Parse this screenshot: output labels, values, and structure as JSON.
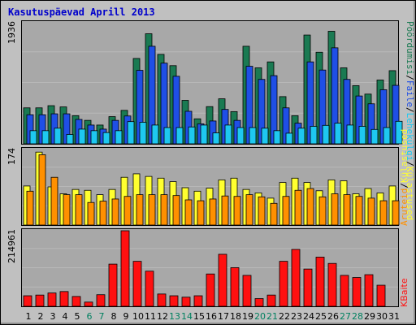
{
  "window": {
    "title": "Kasutuspäevad Aprill 2013"
  },
  "colors": {
    "background": "#c0c0c0",
    "panel": "#a8a8a8",
    "visits": "#1a7a52",
    "pages": "#1f4fe6",
    "files": "#1ec8f0",
    "hits": "#ffff30",
    "sites": "#ff9000",
    "kbytes": "#ff1010",
    "weekend_tick": "#008060",
    "title": "#0000cc"
  },
  "chart_data": [
    {
      "type": "bar",
      "panel": "top",
      "y_max_label": "1936",
      "ylim": [
        0,
        1936
      ],
      "categories": [
        "1",
        "2",
        "3",
        "4",
        "5",
        "6",
        "7",
        "8",
        "9",
        "10",
        "11",
        "12",
        "13",
        "14",
        "15",
        "16",
        "17",
        "18",
        "19",
        "20",
        "21",
        "22",
        "23",
        "24",
        "25",
        "26",
        "27",
        "28",
        "29",
        "30",
        "31"
      ],
      "weekend_days": [
        "6",
        "7",
        "13",
        "14",
        "20",
        "21",
        "27",
        "28"
      ],
      "legend": [
        "Külastused",
        "Lehekülgi",
        "Faile",
        "Pöördumisi"
      ],
      "legend_separator": "/",
      "series": [
        {
          "name": "Pöördumisi",
          "color_key": "visits",
          "values": [
            575,
            575,
            610,
            590,
            450,
            375,
            300,
            435,
            535,
            1365,
            1760,
            1430,
            1250,
            695,
            400,
            595,
            720,
            515,
            1560,
            1215,
            1310,
            755,
            450,
            1740,
            1465,
            1800,
            1215,
            930,
            795,
            1020,
            1170
          ]
        },
        {
          "name": "Faile",
          "color_key": "pages",
          "values": [
            465,
            465,
            480,
            480,
            390,
            300,
            235,
            375,
            445,
            1175,
            1560,
            1290,
            1080,
            520,
            320,
            365,
            550,
            375,
            1240,
            1030,
            1090,
            575,
            330,
            1310,
            1180,
            1535,
            1030,
            765,
            640,
            865,
            935
          ]
        },
        {
          "name": "Lehekülgi",
          "color_key": "files",
          "values": [
            210,
            210,
            250,
            150,
            235,
            210,
            180,
            210,
            355,
            345,
            300,
            260,
            260,
            270,
            300,
            175,
            300,
            260,
            260,
            250,
            210,
            170,
            250,
            280,
            295,
            330,
            300,
            280,
            230,
            260,
            360
          ]
        }
      ]
    },
    {
      "type": "bar",
      "panel": "middle",
      "y_max_label": "174",
      "ylim": [
        0,
        174
      ],
      "categories": [
        "1",
        "2",
        "3",
        "4",
        "5",
        "6",
        "7",
        "8",
        "9",
        "10",
        "11",
        "12",
        "13",
        "14",
        "15",
        "16",
        "17",
        "18",
        "19",
        "20",
        "21",
        "22",
        "23",
        "24",
        "25",
        "26",
        "27",
        "28",
        "29",
        "30",
        "31"
      ],
      "legend": [
        "Aruteid",
        "Külastused"
      ],
      "series": [
        {
          "name": "Külastused",
          "color_key": "hits",
          "values": [
            90,
            168,
            88,
            72,
            82,
            80,
            70,
            82,
            110,
            118,
            112,
            108,
            100,
            86,
            78,
            85,
            104,
            108,
            82,
            74,
            62,
            98,
            108,
            98,
            79,
            104,
            102,
            72,
            84,
            74,
            90
          ]
        },
        {
          "name": "Aruteid",
          "color_key": "sites",
          "values": [
            78,
            162,
            110,
            70,
            70,
            52,
            55,
            60,
            66,
            70,
            70,
            70,
            68,
            58,
            56,
            60,
            67,
            66,
            70,
            65,
            50,
            66,
            80,
            84,
            65,
            72,
            70,
            66,
            62,
            56,
            56
          ]
        }
      ]
    },
    {
      "type": "bar",
      "panel": "bottom",
      "y_max_label": "214961",
      "ylim": [
        0,
        214961
      ],
      "categories": [
        "1",
        "2",
        "3",
        "4",
        "5",
        "6",
        "7",
        "8",
        "9",
        "10",
        "11",
        "12",
        "13",
        "14",
        "15",
        "16",
        "17",
        "18",
        "19",
        "20",
        "21",
        "22",
        "23",
        "24",
        "25",
        "26",
        "27",
        "28",
        "29",
        "30",
        "31"
      ],
      "legend": [
        "KBaite"
      ],
      "series": [
        {
          "name": "KBaite",
          "color_key": "kbytes",
          "values": [
            30000,
            32000,
            38000,
            42000,
            28000,
            12000,
            33000,
            120000,
            214961,
            128000,
            100000,
            35000,
            30000,
            26000,
            30000,
            92000,
            148000,
            110000,
            88000,
            22000,
            32000,
            128000,
            162000,
            106000,
            140000,
            122000,
            88000,
            82000,
            90000,
            60000,
            0
          ]
        }
      ]
    }
  ]
}
